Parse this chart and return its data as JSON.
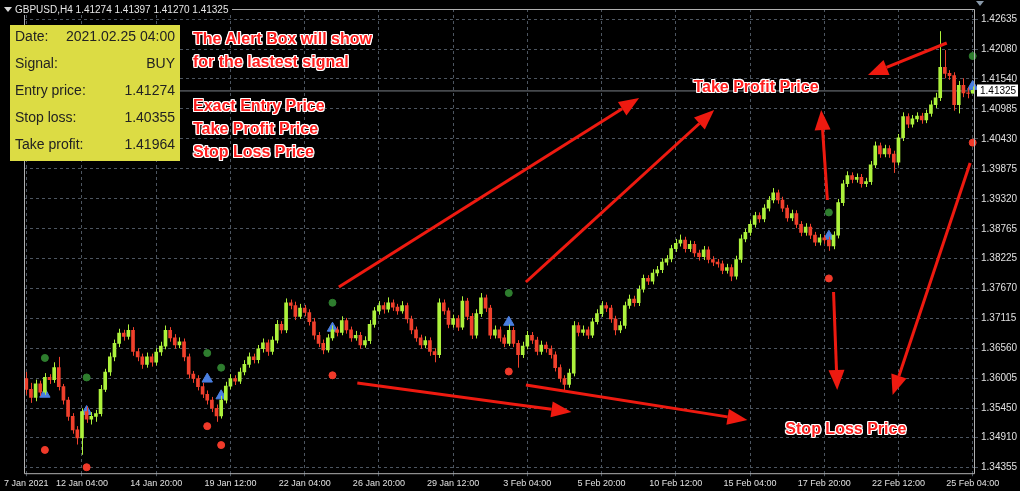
{
  "chart_data": {
    "type": "candlestick",
    "title": "GBPUSD,H4  1.41274 1.41397 1.41270 1.41325",
    "categories": [
      "7 Jan 2021",
      null,
      null,
      null,
      null,
      null,
      null,
      null,
      null,
      null,
      null,
      null,
      "12 Jan 04:00",
      null,
      null,
      null,
      null,
      null,
      null,
      null,
      null,
      null,
      null,
      null,
      null,
      null,
      null,
      null,
      "14 Jan 20:00",
      null,
      null,
      null,
      null,
      null,
      null,
      null,
      null,
      null,
      null,
      null,
      null,
      null,
      null,
      null,
      "19 Jan 12:00",
      null,
      null,
      null,
      null,
      null,
      null,
      null,
      null,
      null,
      null,
      null,
      null,
      null,
      null,
      null,
      "22 Jan 04:00",
      null,
      null,
      null,
      null,
      null,
      null,
      null,
      null,
      null,
      null,
      null,
      null,
      null,
      null,
      null,
      "26 Jan 20:00",
      null,
      null,
      null,
      null,
      null,
      null,
      null,
      null,
      null,
      null,
      null,
      null,
      null,
      null,
      null,
      "29 Jan 12:00",
      null,
      null,
      null,
      null,
      null,
      null,
      null,
      null,
      null,
      null,
      null,
      null,
      null,
      null,
      null,
      "3 Feb 04:00",
      null,
      null,
      null,
      null,
      null,
      null,
      null,
      null,
      null,
      null,
      null,
      null,
      null,
      null,
      null,
      "5 Feb 20:00",
      null,
      null,
      null,
      null,
      null,
      null,
      null,
      null,
      null,
      null,
      null,
      null,
      null,
      null,
      null,
      "10 Feb 12:00",
      null,
      null,
      null,
      null,
      null,
      null,
      null,
      null,
      null,
      null,
      null,
      null,
      null,
      null,
      null,
      "15 Feb 04:00",
      null,
      null,
      null,
      null,
      null,
      null,
      null,
      null,
      null,
      null,
      null,
      null,
      null,
      null,
      null,
      "17 Feb 20:00",
      null,
      null,
      null,
      null,
      null,
      null,
      null,
      null,
      null,
      null,
      null,
      null,
      null,
      null,
      null,
      "22 Feb 12:00",
      null,
      null,
      null,
      null,
      null,
      null,
      null,
      null,
      null,
      null,
      null,
      null,
      null,
      null,
      null,
      "25 Feb 04:00"
    ],
    "ohlc": [
      [
        1.36,
        1.3612,
        1.357,
        1.358
      ],
      [
        1.358,
        1.3592,
        1.3555,
        1.3565
      ],
      [
        1.3565,
        1.3598,
        1.3558,
        1.359
      ],
      [
        1.359,
        1.3596,
        1.3568,
        1.3575
      ],
      [
        1.3575,
        1.361,
        1.357,
        1.3602
      ],
      [
        1.3602,
        1.3608,
        1.359,
        1.3598
      ],
      [
        1.3598,
        1.363,
        1.3592,
        1.362
      ],
      [
        1.362,
        1.364,
        1.3578,
        1.3585
      ],
      [
        1.3585,
        1.359,
        1.3552,
        1.356
      ],
      [
        1.356,
        1.3566,
        1.3522,
        1.353
      ],
      [
        1.353,
        1.3536,
        1.3498,
        1.3505
      ],
      [
        1.3505,
        1.3512,
        1.3478,
        1.349
      ],
      [
        1.349,
        1.3545,
        1.3459,
        1.3539
      ],
      [
        1.3539,
        1.3548,
        1.3518,
        1.3525
      ],
      [
        1.3525,
        1.3538,
        1.3515,
        1.353
      ],
      [
        1.353,
        1.3542,
        1.352,
        1.3535
      ],
      [
        1.3535,
        1.3588,
        1.353,
        1.358
      ],
      [
        1.358,
        1.3618,
        1.3575,
        1.3612
      ],
      [
        1.3612,
        1.3648,
        1.3605,
        1.364
      ],
      [
        1.364,
        1.3672,
        1.3632,
        1.3665
      ],
      [
        1.3665,
        1.3692,
        1.3658,
        1.3684
      ],
      [
        1.3684,
        1.369,
        1.367,
        1.3678
      ],
      [
        1.3678,
        1.37,
        1.3672,
        1.3689
      ],
      [
        1.3689,
        1.3695,
        1.3642,
        1.365
      ],
      [
        1.365,
        1.3656,
        1.3632,
        1.364
      ],
      [
        1.364,
        1.3646,
        1.3618,
        1.3626
      ],
      [
        1.3626,
        1.3648,
        1.362,
        1.364
      ],
      [
        1.364,
        1.3646,
        1.3622,
        1.363
      ],
      [
        1.363,
        1.3656,
        1.3624,
        1.3649
      ],
      [
        1.3649,
        1.3668,
        1.3642,
        1.366
      ],
      [
        1.366,
        1.3698,
        1.3654,
        1.3689
      ],
      [
        1.3689,
        1.3695,
        1.3668,
        1.3675
      ],
      [
        1.3675,
        1.3682,
        1.3655,
        1.3662
      ],
      [
        1.3662,
        1.3676,
        1.3656,
        1.3668
      ],
      [
        1.3668,
        1.3674,
        1.3632,
        1.364
      ],
      [
        1.364,
        1.3646,
        1.36,
        1.3608
      ],
      [
        1.3608,
        1.3614,
        1.3592,
        1.36
      ],
      [
        1.36,
        1.3606,
        1.3578,
        1.3585
      ],
      [
        1.3585,
        1.3592,
        1.3564,
        1.3571
      ],
      [
        1.3571,
        1.3578,
        1.3552,
        1.356
      ],
      [
        1.356,
        1.3566,
        1.3538,
        1.3545
      ],
      [
        1.3545,
        1.3552,
        1.352,
        1.3531
      ],
      [
        1.3531,
        1.3568,
        1.3526,
        1.356
      ],
      [
        1.356,
        1.3594,
        1.3554,
        1.3586
      ],
      [
        1.3586,
        1.3608,
        1.358,
        1.36
      ],
      [
        1.36,
        1.3606,
        1.3588,
        1.3595
      ],
      [
        1.3595,
        1.362,
        1.359,
        1.3612
      ],
      [
        1.3612,
        1.3634,
        1.3606,
        1.3626
      ],
      [
        1.3626,
        1.3648,
        1.362,
        1.364
      ],
      [
        1.364,
        1.3646,
        1.3628,
        1.3635
      ],
      [
        1.3635,
        1.3662,
        1.3628,
        1.3655
      ],
      [
        1.3655,
        1.3674,
        1.3648,
        1.3666
      ],
      [
        1.3666,
        1.3672,
        1.3642,
        1.365
      ],
      [
        1.365,
        1.3678,
        1.3644,
        1.3671
      ],
      [
        1.3671,
        1.3708,
        1.3665,
        1.37
      ],
      [
        1.37,
        1.3706,
        1.3683,
        1.369
      ],
      [
        1.369,
        1.3748,
        1.3684,
        1.374
      ],
      [
        1.374,
        1.3746,
        1.3728,
        1.3735
      ],
      [
        1.3735,
        1.3742,
        1.3708,
        1.3715
      ],
      [
        1.3715,
        1.3738,
        1.371,
        1.373
      ],
      [
        1.373,
        1.3736,
        1.3715,
        1.3722
      ],
      [
        1.3722,
        1.3728,
        1.3698,
        1.3705
      ],
      [
        1.3705,
        1.3712,
        1.3672,
        1.368
      ],
      [
        1.368,
        1.3686,
        1.3658,
        1.3665
      ],
      [
        1.3665,
        1.3672,
        1.3645,
        1.3653
      ],
      [
        1.3653,
        1.3682,
        1.3648,
        1.3675
      ],
      [
        1.3675,
        1.3698,
        1.367,
        1.369
      ],
      [
        1.369,
        1.3696,
        1.3678,
        1.3685
      ],
      [
        1.3685,
        1.3715,
        1.368,
        1.3707
      ],
      [
        1.3707,
        1.3712,
        1.3683,
        1.369
      ],
      [
        1.369,
        1.3696,
        1.3668,
        1.3675
      ],
      [
        1.3675,
        1.3688,
        1.367,
        1.368
      ],
      [
        1.368,
        1.3686,
        1.3655,
        1.3662
      ],
      [
        1.3662,
        1.3678,
        1.3657,
        1.367
      ],
      [
        1.367,
        1.3708,
        1.3664,
        1.37
      ],
      [
        1.37,
        1.3732,
        1.3694,
        1.3725
      ],
      [
        1.3725,
        1.3743,
        1.3718,
        1.3735
      ],
      [
        1.3735,
        1.3741,
        1.372,
        1.3728
      ],
      [
        1.3728,
        1.375,
        1.3722,
        1.374
      ],
      [
        1.374,
        1.3746,
        1.3725,
        1.3732
      ],
      [
        1.3732,
        1.3738,
        1.3718,
        1.3725
      ],
      [
        1.3725,
        1.3743,
        1.372,
        1.3735
      ],
      [
        1.3735,
        1.374,
        1.3702,
        1.371
      ],
      [
        1.371,
        1.3716,
        1.3682,
        1.369
      ],
      [
        1.369,
        1.3696,
        1.3668,
        1.3675
      ],
      [
        1.3675,
        1.3681,
        1.3655,
        1.3662
      ],
      [
        1.3662,
        1.3678,
        1.3656,
        1.367
      ],
      [
        1.367,
        1.3676,
        1.3642,
        1.365
      ],
      [
        1.365,
        1.3656,
        1.363,
        1.3644
      ],
      [
        1.3644,
        1.3748,
        1.3638,
        1.374
      ],
      [
        1.374,
        1.3746,
        1.3718,
        1.3725
      ],
      [
        1.3725,
        1.3731,
        1.3693,
        1.37
      ],
      [
        1.37,
        1.3718,
        1.3694,
        1.3711
      ],
      [
        1.3711,
        1.3717,
        1.3688,
        1.3695
      ],
      [
        1.3695,
        1.3752,
        1.369,
        1.3743
      ],
      [
        1.3743,
        1.3749,
        1.3708,
        1.3715
      ],
      [
        1.3715,
        1.3721,
        1.3673,
        1.368
      ],
      [
        1.368,
        1.3728,
        1.3674,
        1.372
      ],
      [
        1.372,
        1.3758,
        1.3714,
        1.3749
      ],
      [
        1.3749,
        1.3755,
        1.3723,
        1.373
      ],
      [
        1.373,
        1.3736,
        1.3673,
        1.368
      ],
      [
        1.368,
        1.3698,
        1.3674,
        1.369
      ],
      [
        1.369,
        1.3696,
        1.3668,
        1.3675
      ],
      [
        1.3675,
        1.3681,
        1.3658,
        1.3665
      ],
      [
        1.3665,
        1.37,
        1.366,
        1.3689
      ],
      [
        1.3689,
        1.3695,
        1.3658,
        1.3665
      ],
      [
        1.3665,
        1.3671,
        1.362,
        1.3644
      ],
      [
        1.3644,
        1.3668,
        1.3638,
        1.366
      ],
      [
        1.366,
        1.3688,
        1.3654,
        1.368
      ],
      [
        1.368,
        1.3686,
        1.3664,
        1.3671
      ],
      [
        1.3671,
        1.3677,
        1.3643,
        1.365
      ],
      [
        1.365,
        1.367,
        1.3644,
        1.3662
      ],
      [
        1.3662,
        1.3668,
        1.3648,
        1.3655
      ],
      [
        1.3655,
        1.3661,
        1.3637,
        1.3644
      ],
      [
        1.3644,
        1.365,
        1.3613,
        1.362
      ],
      [
        1.362,
        1.3626,
        1.3593,
        1.36
      ],
      [
        1.36,
        1.3606,
        1.3578,
        1.3589
      ],
      [
        1.3589,
        1.3618,
        1.3583,
        1.361
      ],
      [
        1.361,
        1.3706,
        1.3604,
        1.3698
      ],
      [
        1.3698,
        1.3704,
        1.3678,
        1.3685
      ],
      [
        1.3685,
        1.3698,
        1.3679,
        1.369
      ],
      [
        1.369,
        1.3696,
        1.3673,
        1.368
      ],
      [
        1.368,
        1.3712,
        1.3675,
        1.3705
      ],
      [
        1.3705,
        1.3728,
        1.37,
        1.372
      ],
      [
        1.372,
        1.3743,
        1.3714,
        1.3735
      ],
      [
        1.3735,
        1.3741,
        1.3723,
        1.373
      ],
      [
        1.373,
        1.3736,
        1.3703,
        1.371
      ],
      [
        1.371,
        1.3716,
        1.368,
        1.369
      ],
      [
        1.369,
        1.3706,
        1.3684,
        1.3698
      ],
      [
        1.3698,
        1.3742,
        1.3692,
        1.3735
      ],
      [
        1.3735,
        1.3755,
        1.3729,
        1.3747
      ],
      [
        1.3747,
        1.3753,
        1.3733,
        1.374
      ],
      [
        1.374,
        1.3772,
        1.3734,
        1.3765
      ],
      [
        1.3765,
        1.3792,
        1.3759,
        1.3785
      ],
      [
        1.3785,
        1.3791,
        1.3773,
        1.378
      ],
      [
        1.378,
        1.3802,
        1.3774,
        1.3795
      ],
      [
        1.3795,
        1.3808,
        1.3789,
        1.3801
      ],
      [
        1.3801,
        1.3822,
        1.3795,
        1.3815
      ],
      [
        1.3815,
        1.3828,
        1.3809,
        1.3821
      ],
      [
        1.3821,
        1.3847,
        1.3815,
        1.384
      ],
      [
        1.384,
        1.3858,
        1.3834,
        1.385
      ],
      [
        1.385,
        1.3866,
        1.3844,
        1.3856
      ],
      [
        1.3856,
        1.3862,
        1.3833,
        1.384
      ],
      [
        1.384,
        1.3855,
        1.3834,
        1.3848
      ],
      [
        1.3848,
        1.3854,
        1.3825,
        1.3832
      ],
      [
        1.3832,
        1.3838,
        1.3818,
        1.3825
      ],
      [
        1.3825,
        1.3845,
        1.3819,
        1.3838
      ],
      [
        1.3838,
        1.3844,
        1.3813,
        1.382
      ],
      [
        1.382,
        1.3826,
        1.3808,
        1.3815
      ],
      [
        1.3815,
        1.3821,
        1.3805,
        1.3812
      ],
      [
        1.3812,
        1.3818,
        1.3793,
        1.38
      ],
      [
        1.38,
        1.3812,
        1.3794,
        1.3805
      ],
      [
        1.3805,
        1.3811,
        1.378,
        1.3789
      ],
      [
        1.3789,
        1.3827,
        1.3783,
        1.382
      ],
      [
        1.382,
        1.3866,
        1.3814,
        1.3858
      ],
      [
        1.3858,
        1.3877,
        1.3852,
        1.387
      ],
      [
        1.387,
        1.3892,
        1.3864,
        1.3885
      ],
      [
        1.3885,
        1.3908,
        1.3879,
        1.3901
      ],
      [
        1.3901,
        1.3907,
        1.3888,
        1.3895
      ],
      [
        1.3895,
        1.3922,
        1.3889,
        1.3915
      ],
      [
        1.3915,
        1.3937,
        1.3909,
        1.393
      ],
      [
        1.393,
        1.3952,
        1.3924,
        1.3943
      ],
      [
        1.3943,
        1.3949,
        1.3923,
        1.393
      ],
      [
        1.393,
        1.3936,
        1.3908,
        1.3915
      ],
      [
        1.3915,
        1.3921,
        1.389,
        1.3897
      ],
      [
        1.3897,
        1.3912,
        1.3891,
        1.3905
      ],
      [
        1.3905,
        1.3911,
        1.3878,
        1.3885
      ],
      [
        1.3885,
        1.3891,
        1.3863,
        1.387
      ],
      [
        1.387,
        1.3887,
        1.3864,
        1.388
      ],
      [
        1.388,
        1.3886,
        1.3858,
        1.3865
      ],
      [
        1.3865,
        1.3871,
        1.3845,
        1.3852
      ],
      [
        1.3852,
        1.3867,
        1.3846,
        1.386
      ],
      [
        1.386,
        1.3866,
        1.3849,
        1.3856
      ],
      [
        1.3856,
        1.3862,
        1.3836,
        1.3845
      ],
      [
        1.3845,
        1.3872,
        1.3839,
        1.3865
      ],
      [
        1.3865,
        1.3932,
        1.3859,
        1.3925
      ],
      [
        1.3925,
        1.3967,
        1.3919,
        1.396
      ],
      [
        1.396,
        1.3983,
        1.3954,
        1.3975
      ],
      [
        1.3975,
        1.3981,
        1.3961,
        1.3968
      ],
      [
        1.3968,
        1.3979,
        1.3962,
        1.3972
      ],
      [
        1.3972,
        1.3978,
        1.3953,
        1.396
      ],
      [
        1.396,
        1.3971,
        1.3954,
        1.3964
      ],
      [
        1.3964,
        1.4002,
        1.3958,
        1.3995
      ],
      [
        1.3995,
        1.4038,
        1.3989,
        1.403
      ],
      [
        1.403,
        1.4036,
        1.4008,
        1.4015
      ],
      [
        1.4015,
        1.4032,
        1.4009,
        1.4025
      ],
      [
        1.4025,
        1.4031,
        1.4008,
        1.4015
      ],
      [
        1.4015,
        1.4021,
        1.398,
        1.4
      ],
      [
        1.4,
        1.4052,
        1.3994,
        1.4045
      ],
      [
        1.4045,
        1.4092,
        1.4039,
        1.4084
      ],
      [
        1.4084,
        1.409,
        1.4063,
        1.407
      ],
      [
        1.407,
        1.4087,
        1.4064,
        1.408
      ],
      [
        1.408,
        1.4092,
        1.4074,
        1.4085
      ],
      [
        1.4085,
        1.4091,
        1.4071,
        1.4078
      ],
      [
        1.4078,
        1.4097,
        1.4072,
        1.409
      ],
      [
        1.409,
        1.4114,
        1.4084,
        1.4106
      ],
      [
        1.4106,
        1.4128,
        1.41,
        1.4119
      ],
      [
        1.4119,
        1.4242,
        1.4113,
        1.4175
      ],
      [
        1.4175,
        1.4207,
        1.4155,
        1.4164
      ],
      [
        1.4164,
        1.417,
        1.4152,
        1.416
      ],
      [
        1.416,
        1.4166,
        1.4095,
        1.4106
      ],
      [
        1.4106,
        1.415,
        1.409,
        1.4142
      ],
      [
        1.4142,
        1.4155,
        1.412,
        1.4128
      ],
      [
        1.4128,
        1.4138,
        1.4118,
        1.4127
      ],
      [
        1.41274,
        1.41397,
        1.4127,
        1.41325
      ]
    ],
    "colors": [
      "#f0402c",
      "#f0402c",
      "#adf23c",
      "#f0402c",
      "#adf23c",
      "#f0402c",
      "#adf23c",
      "#f0402c",
      "#f0402c",
      "#f0402c",
      "#f0402c",
      "#f0402c",
      "#adf23c",
      "#f0402c",
      "#adf23c",
      "#adf23c",
      "#adf23c",
      "#adf23c",
      "#adf23c",
      "#adf23c",
      "#adf23c",
      "#f0402c",
      "#adf23c",
      "#f0402c",
      "#f0402c",
      "#f0402c",
      "#adf23c",
      "#f0402c",
      "#adf23c",
      "#adf23c",
      "#adf23c",
      "#f0402c",
      "#f0402c",
      "#adf23c",
      "#f0402c",
      "#f0402c",
      "#f0402c",
      "#f0402c",
      "#f0402c",
      "#f0402c",
      "#f0402c",
      "#f0402c",
      "#adf23c",
      "#adf23c",
      "#adf23c",
      "#f0402c",
      "#adf23c",
      "#adf23c",
      "#adf23c",
      "#f0402c",
      "#adf23c",
      "#adf23c",
      "#f0402c",
      "#adf23c",
      "#adf23c",
      "#f0402c",
      "#adf23c",
      "#f0402c",
      "#f0402c",
      "#adf23c",
      "#f0402c",
      "#f0402c",
      "#f0402c",
      "#f0402c",
      "#f0402c",
      "#adf23c",
      "#adf23c",
      "#f0402c",
      "#adf23c",
      "#f0402c",
      "#f0402c",
      "#adf23c",
      "#f0402c",
      "#adf23c",
      "#adf23c",
      "#adf23c",
      "#adf23c",
      "#f0402c",
      "#adf23c",
      "#f0402c",
      "#f0402c",
      "#adf23c",
      "#f0402c",
      "#f0402c",
      "#f0402c",
      "#f0402c",
      "#adf23c",
      "#f0402c",
      "#f0402c",
      "#adf23c",
      "#f0402c",
      "#f0402c",
      "#adf23c",
      "#f0402c",
      "#adf23c",
      "#f0402c",
      "#f0402c",
      "#adf23c",
      "#adf23c",
      "#f0402c",
      "#f0402c",
      "#adf23c",
      "#f0402c",
      "#f0402c",
      "#adf23c",
      "#f0402c",
      "#f0402c",
      "#adf23c",
      "#adf23c",
      "#f0402c",
      "#f0402c",
      "#adf23c",
      "#f0402c",
      "#f0402c",
      "#f0402c",
      "#f0402c",
      "#f0402c",
      "#adf23c",
      "#adf23c",
      "#f0402c",
      "#adf23c",
      "#f0402c",
      "#adf23c",
      "#adf23c",
      "#adf23c",
      "#f0402c",
      "#f0402c",
      "#f0402c",
      "#adf23c",
      "#adf23c",
      "#adf23c",
      "#f0402c",
      "#adf23c",
      "#adf23c",
      "#f0402c",
      "#adf23c",
      "#adf23c",
      "#adf23c",
      "#adf23c",
      "#adf23c",
      "#adf23c",
      "#adf23c",
      "#f0402c",
      "#adf23c",
      "#f0402c",
      "#f0402c",
      "#adf23c",
      "#f0402c",
      "#f0402c",
      "#f0402c",
      "#f0402c",
      "#adf23c",
      "#f0402c",
      "#adf23c",
      "#adf23c",
      "#adf23c",
      "#adf23c",
      "#adf23c",
      "#f0402c",
      "#adf23c",
      "#adf23c",
      "#adf23c",
      "#f0402c",
      "#f0402c",
      "#f0402c",
      "#adf23c",
      "#f0402c",
      "#f0402c",
      "#adf23c",
      "#f0402c",
      "#f0402c",
      "#adf23c",
      "#f0402c",
      "#f0402c",
      "#adf23c",
      "#adf23c",
      "#adf23c",
      "#adf23c",
      "#f0402c",
      "#adf23c",
      "#f0402c",
      "#adf23c",
      "#adf23c",
      "#adf23c",
      "#f0402c",
      "#adf23c",
      "#f0402c",
      "#f0402c",
      "#adf23c",
      "#adf23c",
      "#f0402c",
      "#adf23c",
      "#adf23c",
      "#f0402c",
      "#adf23c",
      "#adf23c",
      "#adf23c",
      "#adf23c",
      "#f0402c",
      "#f0402c",
      "#f0402c",
      "#adf23c",
      "#f0402c",
      "#f0402c",
      "#adf23c"
    ],
    "series": [
      {
        "type": "scatter",
        "color": "#4a7fe0",
        "marker": "triangle",
        "values": [
          null,
          null,
          null,
          null,
          1.3571,
          null,
          null,
          null,
          null,
          null,
          null,
          null,
          null,
          1.3539,
          null,
          null,
          null,
          null,
          null,
          null,
          null,
          null,
          null,
          null,
          null,
          null,
          null,
          null,
          null,
          null,
          null,
          null,
          null,
          null,
          null,
          null,
          null,
          null,
          null,
          1.3599,
          null,
          null,
          1.3568,
          null,
          null,
          null,
          null,
          null,
          null,
          null,
          null,
          null,
          null,
          null,
          null,
          null,
          null,
          null,
          null,
          null,
          null,
          null,
          null,
          null,
          null,
          null,
          1.3693,
          null,
          null,
          null,
          null,
          null,
          null,
          null,
          null,
          null,
          null,
          null,
          null,
          null,
          null,
          null,
          null,
          null,
          null,
          null,
          null,
          null,
          null,
          null,
          null,
          null,
          null,
          null,
          null,
          null,
          null,
          null,
          null,
          null,
          null,
          null,
          null,
          null,
          1.3704,
          null,
          null,
          null,
          null,
          null,
          null,
          null,
          null,
          null,
          null,
          null,
          null,
          null,
          null,
          null,
          null,
          null,
          null,
          null,
          null,
          null,
          null,
          null,
          null,
          null,
          null,
          null,
          null,
          null,
          null,
          null,
          null,
          null,
          null,
          null,
          null,
          null,
          null,
          null,
          null,
          null,
          null,
          null,
          null,
          null,
          null,
          null,
          null,
          null,
          null,
          null,
          null,
          null,
          null,
          null,
          null,
          null,
          null,
          null,
          null,
          null,
          null,
          null,
          null,
          null,
          null,
          null,
          null,
          1.3863,
          null,
          null,
          null,
          null,
          null,
          null,
          null,
          null,
          null,
          null,
          null,
          null,
          null,
          null,
          null,
          null,
          null,
          null,
          null,
          null,
          null,
          null,
          null,
          null,
          null,
          null,
          null,
          null,
          null,
          null,
          1.414
        ]
      },
      {
        "type": "scatter",
        "color": "#2e7d2e",
        "marker": "circle",
        "values": [
          null,
          null,
          null,
          null,
          1.3638,
          null,
          null,
          null,
          null,
          null,
          null,
          null,
          null,
          1.3602,
          null,
          null,
          null,
          null,
          null,
          null,
          null,
          null,
          null,
          null,
          null,
          null,
          null,
          null,
          null,
          null,
          null,
          null,
          null,
          null,
          null,
          null,
          null,
          null,
          null,
          1.3647,
          null,
          null,
          1.362,
          null,
          null,
          null,
          null,
          null,
          null,
          null,
          null,
          null,
          null,
          null,
          null,
          null,
          null,
          null,
          null,
          null,
          null,
          null,
          null,
          null,
          null,
          null,
          1.374,
          null,
          null,
          null,
          null,
          null,
          null,
          null,
          null,
          null,
          null,
          null,
          null,
          null,
          null,
          null,
          null,
          null,
          null,
          null,
          null,
          null,
          null,
          null,
          null,
          null,
          null,
          null,
          null,
          null,
          null,
          null,
          null,
          null,
          null,
          null,
          null,
          null,
          1.3758,
          null,
          null,
          null,
          null,
          null,
          null,
          null,
          null,
          null,
          null,
          null,
          null,
          null,
          null,
          null,
          null,
          null,
          null,
          null,
          null,
          null,
          null,
          null,
          null,
          null,
          null,
          null,
          null,
          null,
          null,
          null,
          null,
          null,
          null,
          null,
          null,
          null,
          null,
          null,
          null,
          null,
          null,
          null,
          null,
          null,
          null,
          null,
          null,
          null,
          null,
          null,
          null,
          null,
          null,
          null,
          null,
          null,
          null,
          null,
          null,
          null,
          null,
          null,
          null,
          null,
          null,
          null,
          null,
          1.3907,
          null,
          null,
          null,
          null,
          null,
          null,
          null,
          null,
          null,
          null,
          null,
          null,
          null,
          null,
          null,
          null,
          null,
          null,
          null,
          null,
          null,
          null,
          null,
          null,
          null,
          null,
          null,
          null,
          null,
          null,
          1.4196
        ]
      },
      {
        "type": "scatter",
        "color": "#f03a2a",
        "marker": "circle",
        "values": [
          null,
          null,
          null,
          null,
          1.3468,
          null,
          null,
          null,
          null,
          null,
          null,
          null,
          null,
          1.3436,
          null,
          null,
          null,
          null,
          null,
          null,
          null,
          null,
          null,
          null,
          null,
          null,
          null,
          null,
          null,
          null,
          null,
          null,
          null,
          null,
          null,
          null,
          null,
          null,
          null,
          1.3512,
          null,
          null,
          1.3477,
          null,
          null,
          null,
          null,
          null,
          null,
          null,
          null,
          null,
          null,
          null,
          null,
          null,
          null,
          null,
          null,
          null,
          null,
          null,
          null,
          null,
          null,
          null,
          1.3606,
          null,
          null,
          null,
          null,
          null,
          null,
          null,
          null,
          null,
          null,
          null,
          null,
          null,
          null,
          null,
          null,
          null,
          null,
          null,
          null,
          null,
          null,
          null,
          null,
          null,
          null,
          null,
          null,
          null,
          null,
          null,
          null,
          null,
          null,
          null,
          null,
          null,
          1.3613,
          null,
          null,
          null,
          null,
          null,
          null,
          null,
          null,
          null,
          null,
          null,
          null,
          null,
          null,
          null,
          null,
          null,
          null,
          null,
          null,
          null,
          null,
          null,
          null,
          null,
          null,
          null,
          null,
          null,
          null,
          null,
          null,
          null,
          null,
          null,
          null,
          null,
          null,
          null,
          null,
          null,
          null,
          null,
          null,
          null,
          null,
          null,
          null,
          null,
          null,
          null,
          null,
          null,
          null,
          null,
          null,
          null,
          null,
          null,
          null,
          null,
          null,
          null,
          null,
          null,
          null,
          null,
          null,
          1.3785,
          null,
          null,
          null,
          null,
          null,
          null,
          null,
          null,
          null,
          null,
          null,
          null,
          null,
          null,
          null,
          null,
          null,
          null,
          null,
          null,
          null,
          null,
          null,
          null,
          null,
          null,
          null,
          null,
          null,
          null,
          1.4036
        ]
      }
    ],
    "ylim": [
      1.3425,
      1.4283
    ],
    "yticks": [
      {
        "value": 1.34355,
        "label": "1.34355"
      },
      {
        "value": 1.3491,
        "label": "1.34910"
      },
      {
        "value": 1.3545,
        "label": "1.35450"
      },
      {
        "value": 1.36005,
        "label": "1.36005"
      },
      {
        "value": 1.3656,
        "label": "1.36560"
      },
      {
        "value": 1.37115,
        "label": "1.37115"
      },
      {
        "value": 1.3767,
        "label": "1.37670"
      },
      {
        "value": 1.38225,
        "label": "1.38225"
      },
      {
        "value": 1.38765,
        "label": "1.38765"
      },
      {
        "value": 1.3932,
        "label": "1.39320"
      },
      {
        "value": 1.39875,
        "label": "1.39875"
      },
      {
        "value": 1.4043,
        "label": "1.40430"
      },
      {
        "value": 1.40985,
        "label": "1.40985"
      },
      {
        "value": 1.4154,
        "label": "1.41540"
      },
      {
        "value": 1.4208,
        "label": "1.42080"
      },
      {
        "value": 1.42635,
        "label": "1.42635"
      }
    ],
    "grid": true,
    "ref_lines": [
      {
        "axis": "y",
        "value": 1.41325,
        "label": "1.41325",
        "color": "#7a7f86"
      }
    ],
    "annotations": [
      "Date:",
      "2021.02.25 04:00",
      "Signal:",
      "BUY",
      "Entry price:",
      "1.41274",
      "Stop loss:",
      "1.40355",
      "Take profit:",
      "1.41964",
      "The Alert Box will show",
      "for the lastest signal",
      "Exact Entry Price",
      "Take Profit Price",
      "Stop Loss Price",
      "Take Profit Price",
      "Stop Loss Price"
    ]
  }
}
